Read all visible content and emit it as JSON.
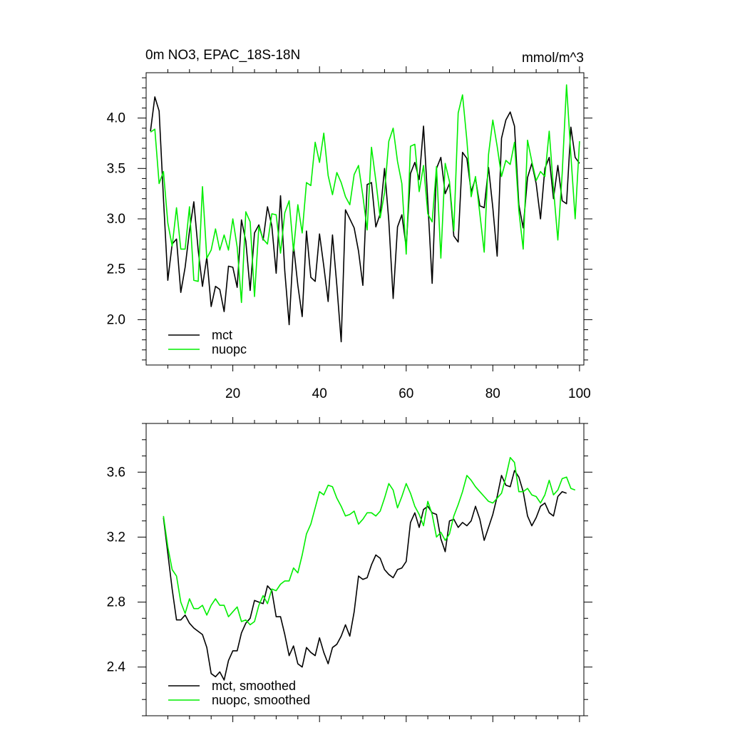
{
  "colors": {
    "mct": "#000000",
    "nuopc": "#00ee00"
  },
  "chart_data": [
    {
      "type": "line",
      "title": "0m NO3, EPAC_18S-18N",
      "units": "mmol/m^3",
      "xlabel": "",
      "ylabel": "",
      "xlim": [
        0,
        101
      ],
      "ylim": [
        1.55,
        4.45
      ],
      "x_ticks": [
        20,
        40,
        60,
        80,
        100
      ],
      "y_ticks": [
        2.0,
        2.5,
        3.0,
        3.5,
        4.0
      ],
      "x_tick_labels": [
        "20",
        "40",
        "60",
        "80",
        "100"
      ],
      "y_tick_labels": [
        "2.0",
        "2.5",
        "3.0",
        "3.5",
        "4.0"
      ],
      "legend_position": "bottom-left",
      "x_start": 1,
      "series": [
        {
          "name": "mct",
          "color_key": "mct",
          "values": [
            3.87,
            4.21,
            4.07,
            3.2,
            2.39,
            2.75,
            2.8,
            2.27,
            2.52,
            2.88,
            3.17,
            2.69,
            2.33,
            2.62,
            2.13,
            2.33,
            2.3,
            2.08,
            2.53,
            2.52,
            2.32,
            2.99,
            2.78,
            2.29,
            2.86,
            2.94,
            2.79,
            3.12,
            2.93,
            2.46,
            3.23,
            2.48,
            1.95,
            2.74,
            2.34,
            2.03,
            2.88,
            2.42,
            2.38,
            2.85,
            2.53,
            2.18,
            2.84,
            2.34,
            1.78,
            3.09,
            3.0,
            2.91,
            2.68,
            2.34,
            3.34,
            3.36,
            2.92,
            3.05,
            3.5,
            2.98,
            2.21,
            2.92,
            3.04,
            2.72,
            3.45,
            3.56,
            3.39,
            3.92,
            3.17,
            2.36,
            3.5,
            3.61,
            3.25,
            3.35,
            2.83,
            2.77,
            3.66,
            3.6,
            3.27,
            3.4,
            3.13,
            3.11,
            3.51,
            3.11,
            2.63,
            3.8,
            3.98,
            4.06,
            3.92,
            3.14,
            2.91,
            3.41,
            3.55,
            3.35,
            3.0,
            3.5,
            3.61,
            3.2,
            3.53,
            3.18,
            3.15,
            3.91,
            3.61,
            3.55
          ]
        },
        {
          "name": "nuopc",
          "color_key": "nuopc",
          "values": [
            3.86,
            3.89,
            3.35,
            3.47,
            2.96,
            2.73,
            3.11,
            2.7,
            2.7,
            3.12,
            2.39,
            2.38,
            3.32,
            2.61,
            2.69,
            2.9,
            2.69,
            2.84,
            2.69,
            3.0,
            2.72,
            2.17,
            3.07,
            2.97,
            2.23,
            2.92,
            2.8,
            2.75,
            3.05,
            3.04,
            2.66,
            3.06,
            3.18,
            2.68,
            3.14,
            2.86,
            3.36,
            3.33,
            3.76,
            3.56,
            3.85,
            3.43,
            3.24,
            3.46,
            3.36,
            3.22,
            3.14,
            3.44,
            3.53,
            3.23,
            2.89,
            3.71,
            3.38,
            3.01,
            3.26,
            3.77,
            3.9,
            3.57,
            3.35,
            2.65,
            3.72,
            3.74,
            3.27,
            3.53,
            3.05,
            2.97,
            3.52,
            2.61,
            3.55,
            3.37,
            2.88,
            4.05,
            4.23,
            3.78,
            3.22,
            3.42,
            3.05,
            2.67,
            3.64,
            3.98,
            3.72,
            3.42,
            3.58,
            3.54,
            3.76,
            3.08,
            2.7,
            3.78,
            3.57,
            3.38,
            3.47,
            3.42,
            3.87,
            3.3,
            2.79,
            3.45,
            4.33,
            3.63,
            3.0,
            3.77
          ]
        }
      ]
    },
    {
      "type": "line",
      "title": "",
      "xlabel": "",
      "ylabel": "",
      "xlim": [
        0,
        101
      ],
      "ylim": [
        2.1,
        3.9
      ],
      "x_ticks": [
        20,
        40,
        60,
        80,
        100
      ],
      "y_ticks": [
        2.4,
        2.8,
        3.2,
        3.6
      ],
      "x_tick_labels": [],
      "y_tick_labels": [
        "2.4",
        "2.8",
        "3.2",
        "3.6"
      ],
      "legend_position": "bottom-left",
      "x_start": 4,
      "series": [
        {
          "name": "mct, smoothed",
          "color_key": "mct",
          "values": [
            3.32,
            3.1,
            2.88,
            2.69,
            2.69,
            2.72,
            2.67,
            2.64,
            2.62,
            2.6,
            2.52,
            2.36,
            2.34,
            2.37,
            2.32,
            2.44,
            2.5,
            2.5,
            2.61,
            2.67,
            2.7,
            2.81,
            2.8,
            2.79,
            2.9,
            2.87,
            2.71,
            2.71,
            2.6,
            2.47,
            2.53,
            2.42,
            2.4,
            2.52,
            2.49,
            2.47,
            2.58,
            2.49,
            2.42,
            2.52,
            2.54,
            2.59,
            2.66,
            2.59,
            2.74,
            2.96,
            2.94,
            2.95,
            3.03,
            3.09,
            3.07,
            3.0,
            2.97,
            2.95,
            3.0,
            3.01,
            3.05,
            3.29,
            3.35,
            3.26,
            3.37,
            3.39,
            3.35,
            3.34,
            3.19,
            3.11,
            3.3,
            3.31,
            3.26,
            3.29,
            3.27,
            3.3,
            3.39,
            3.31,
            3.18,
            3.26,
            3.34,
            3.45,
            3.58,
            3.52,
            3.51,
            3.61,
            3.57,
            3.48,
            3.33,
            3.27,
            3.32,
            3.39,
            3.41,
            3.35,
            3.33,
            3.45,
            3.48,
            3.47
          ]
        },
        {
          "name": "nuopc, smoothed",
          "color_key": "nuopc",
          "values": [
            3.33,
            3.14,
            3.0,
            2.96,
            2.8,
            2.73,
            2.82,
            2.76,
            2.76,
            2.78,
            2.72,
            2.78,
            2.82,
            2.78,
            2.78,
            2.71,
            2.74,
            2.77,
            2.68,
            2.69,
            2.66,
            2.68,
            2.78,
            2.84,
            2.79,
            2.88,
            2.87,
            2.91,
            2.93,
            2.93,
            3.01,
            2.98,
            3.09,
            3.22,
            3.28,
            3.38,
            3.48,
            3.46,
            3.52,
            3.51,
            3.44,
            3.39,
            3.33,
            3.34,
            3.36,
            3.28,
            3.31,
            3.35,
            3.35,
            3.33,
            3.36,
            3.44,
            3.53,
            3.49,
            3.38,
            3.45,
            3.53,
            3.47,
            3.39,
            3.34,
            3.27,
            3.42,
            3.34,
            3.2,
            3.23,
            3.18,
            3.22,
            3.33,
            3.4,
            3.48,
            3.58,
            3.55,
            3.51,
            3.48,
            3.45,
            3.42,
            3.41,
            3.44,
            3.47,
            3.57,
            3.69,
            3.66,
            3.48,
            3.48,
            3.5,
            3.46,
            3.45,
            3.41,
            3.46,
            3.55,
            3.46,
            3.49,
            3.56,
            3.57,
            3.5,
            3.49
          ]
        }
      ]
    }
  ]
}
